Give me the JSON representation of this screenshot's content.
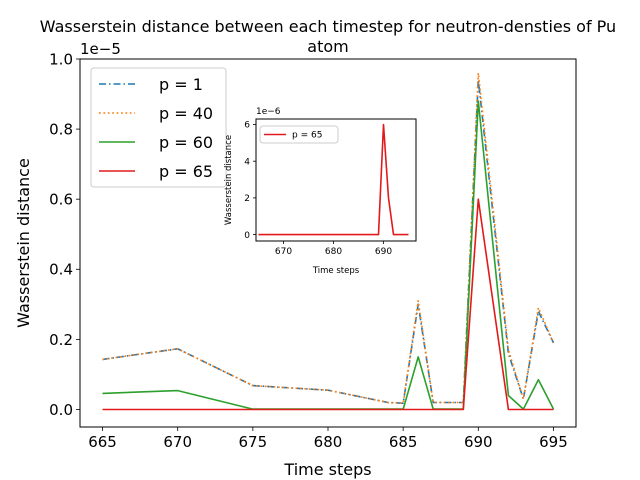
{
  "chart_data": [
    {
      "type": "line",
      "title": "Wasserstein distance between each timestep for neutron-densties of Pu\natom",
      "xlabel": "Time steps",
      "ylabel": "Wasserstein distance",
      "xlim": [
        663.5,
        696.5
      ],
      "ylim": [
        -0.05,
        1.0
      ],
      "y_scale_label": "1e−5",
      "x_ticks": [
        665,
        670,
        675,
        680,
        685,
        690,
        695
      ],
      "y_ticks": [
        0.0,
        0.2,
        0.4,
        0.6,
        0.8,
        1.0
      ],
      "grid": false,
      "legend": "upper-left",
      "x": [
        665,
        670,
        675,
        680,
        684,
        685,
        686,
        687,
        689,
        690,
        692,
        693,
        694,
        695
      ],
      "series": [
        {
          "name": "p = 1",
          "color": "#1f77b4",
          "dash": "dashdot",
          "values": [
            0.143,
            0.173,
            0.068,
            0.055,
            0.02,
            0.018,
            0.3,
            0.02,
            0.02,
            0.94,
            0.16,
            0.03,
            0.28,
            0.19
          ]
        },
        {
          "name": "p = 40",
          "color": "#ff7f0e",
          "dash": "dotted",
          "values": [
            0.143,
            0.173,
            0.068,
            0.055,
            0.02,
            0.018,
            0.31,
            0.02,
            0.02,
            0.96,
            0.17,
            0.03,
            0.29,
            0.19
          ]
        },
        {
          "name": "p = 60",
          "color": "#2ca02c",
          "dash": "solid",
          "values": [
            0.046,
            0.054,
            0.001,
            0.001,
            0.001,
            0.001,
            0.15,
            0.001,
            0.001,
            0.88,
            0.04,
            0.001,
            0.085,
            0.001
          ]
        },
        {
          "name": "p = 65",
          "color": "#e31a1c",
          "dash": "solid",
          "values": [
            0.0,
            0.0,
            0.0,
            0.0,
            0.0,
            0.0,
            0.0,
            0.0,
            0.0,
            0.6,
            0.0,
            0.0,
            0.0,
            0.0
          ]
        }
      ]
    },
    {
      "type": "line",
      "title": "",
      "xlabel": "Time steps",
      "ylabel": "Wasserstein distance",
      "xlim": [
        664.5,
        696.5
      ],
      "ylim": [
        -0.35,
        6.3
      ],
      "y_scale_label": "1e−6",
      "x_ticks": [
        670,
        680,
        690
      ],
      "y_ticks": [
        0,
        2,
        4,
        6
      ],
      "grid": false,
      "legend": "upper-left",
      "x": [
        665,
        689,
        690,
        691,
        692,
        693,
        695
      ],
      "series": [
        {
          "name": "p = 65",
          "color": "#e31a1c",
          "dash": "solid",
          "values": [
            0,
            0,
            6.0,
            2.0,
            0,
            0,
            0
          ]
        }
      ]
    }
  ]
}
